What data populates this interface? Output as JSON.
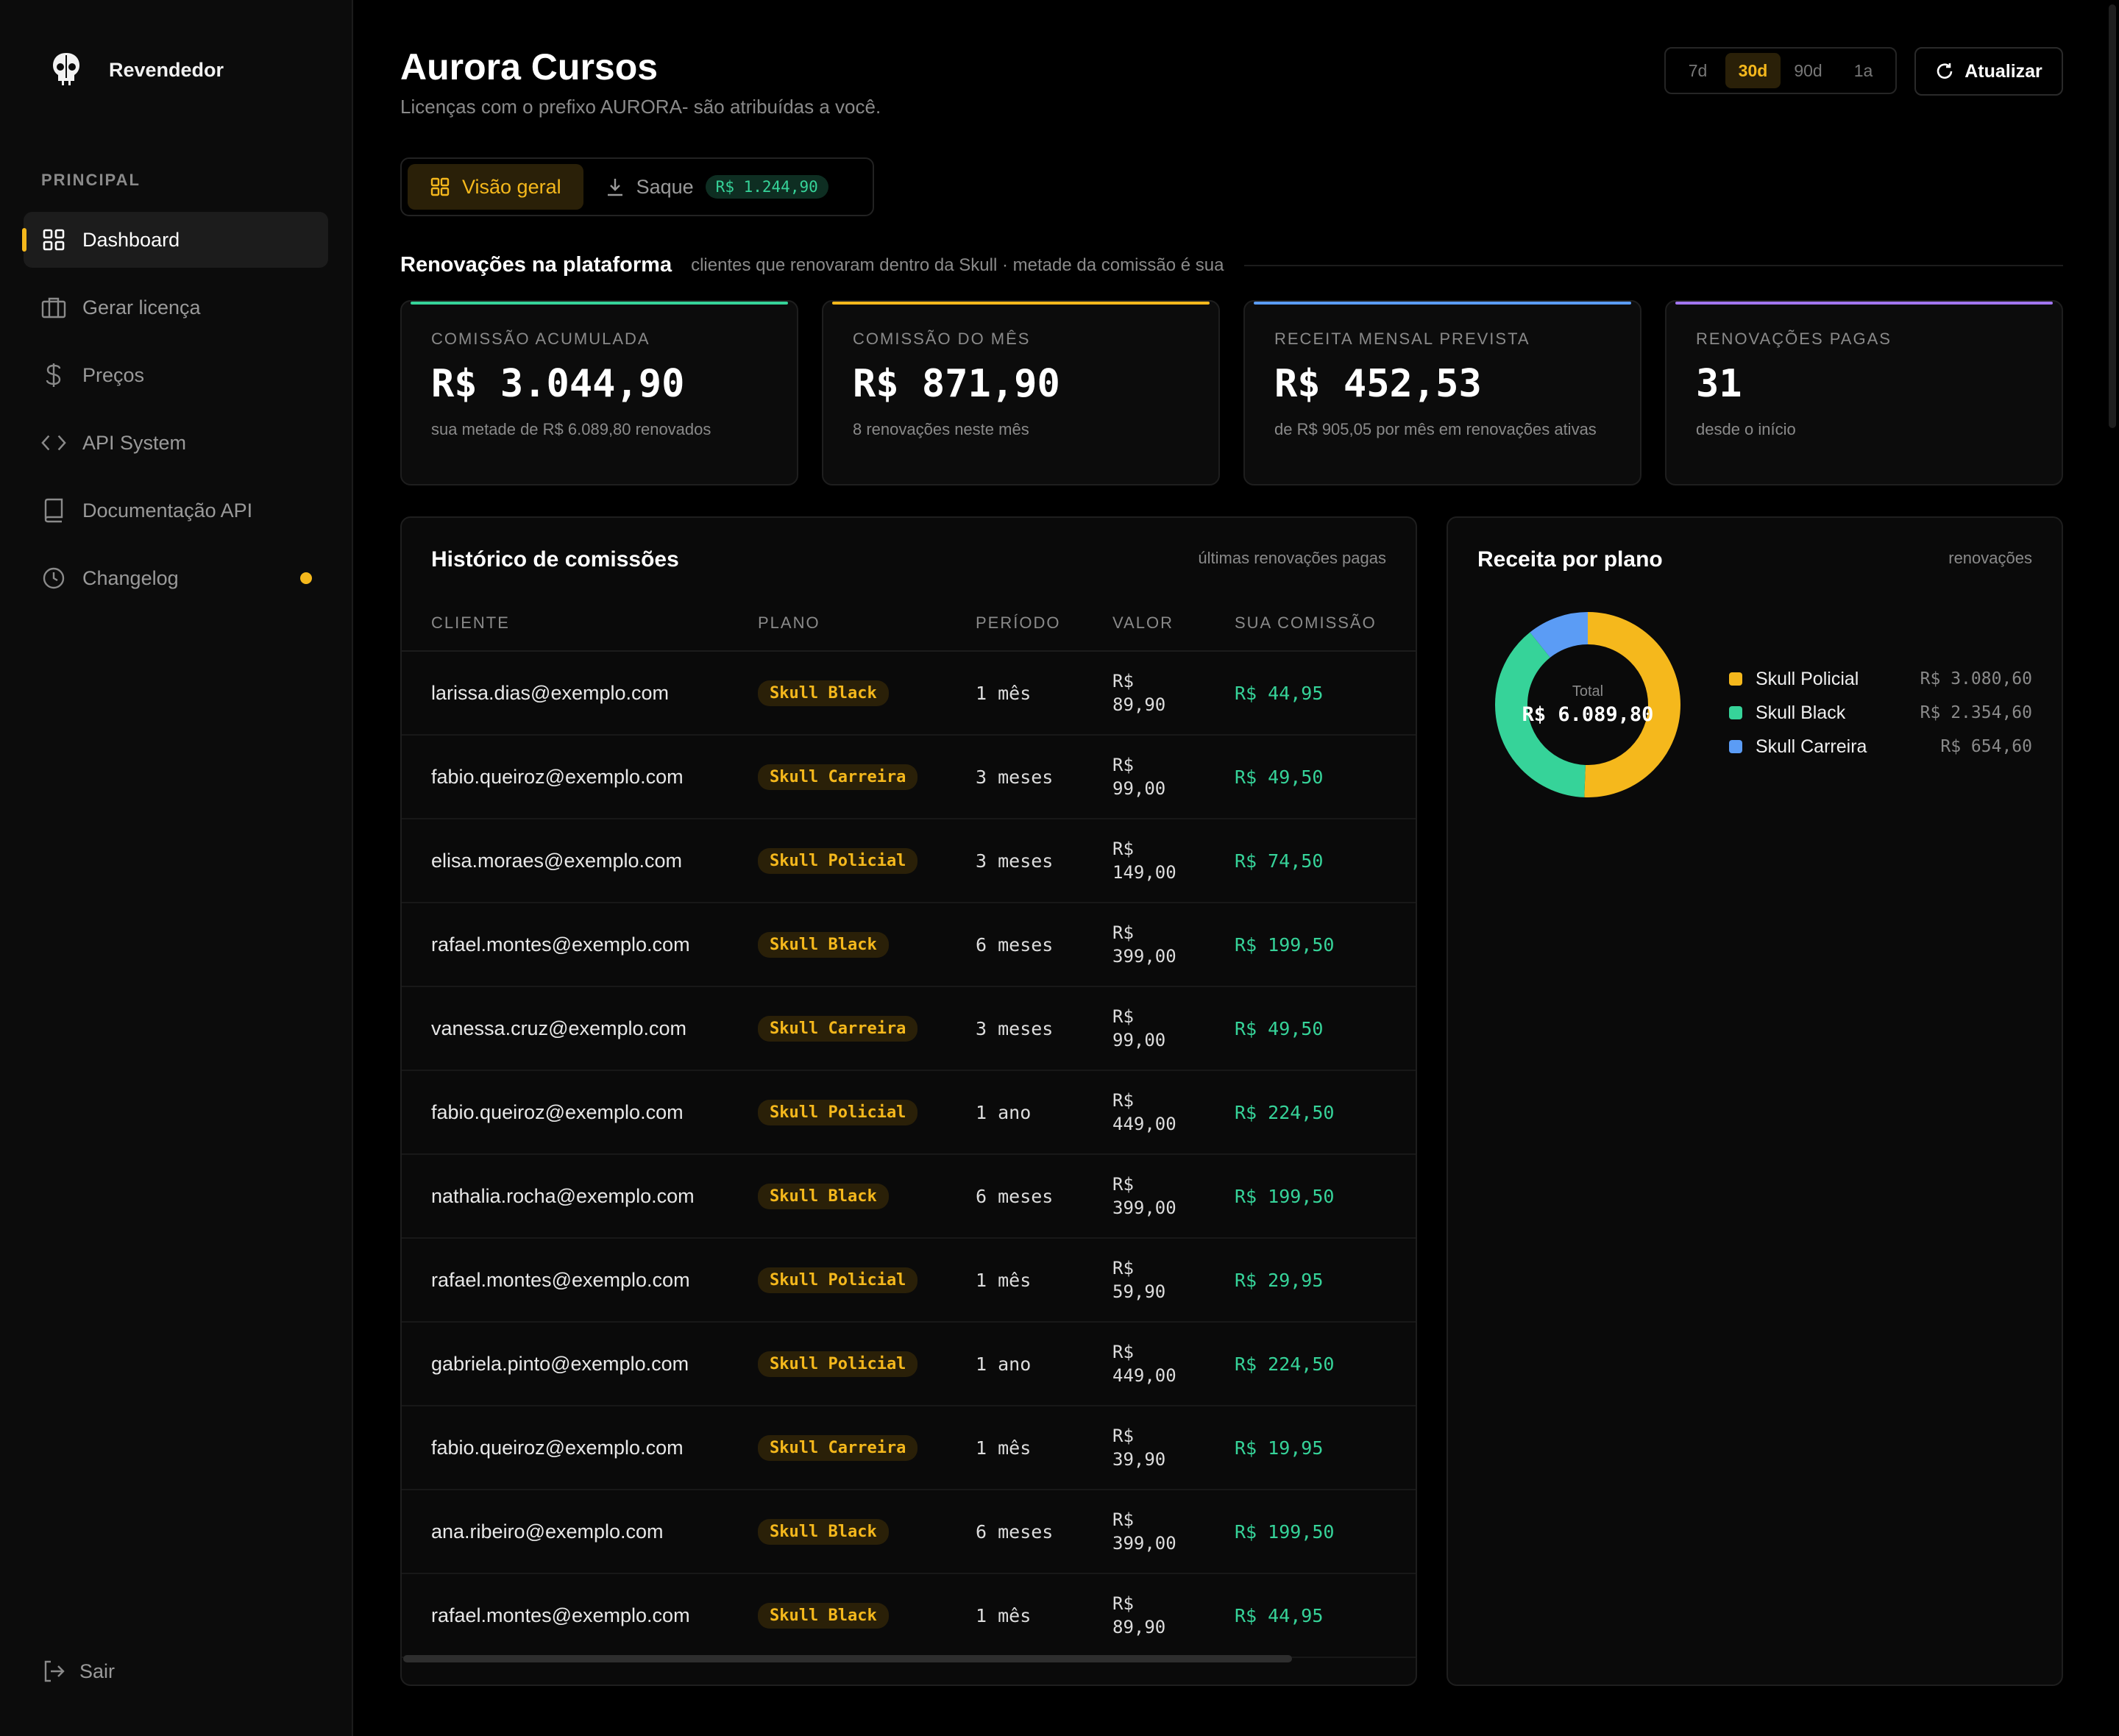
{
  "sidebar": {
    "brand": "Revendedor",
    "section": "PRINCIPAL",
    "items": [
      {
        "label": "Dashboard",
        "icon": "grid-icon"
      },
      {
        "label": "Gerar licença",
        "icon": "briefcase-icon"
      },
      {
        "label": "Preços",
        "icon": "dollar-icon"
      },
      {
        "label": "API System",
        "icon": "code-icon"
      },
      {
        "label": "Documentação API",
        "icon": "book-icon"
      },
      {
        "label": "Changelog",
        "icon": "clock-icon"
      }
    ],
    "logout": "Sair"
  },
  "header": {
    "title": "Aurora Cursos",
    "subtitle": "Licenças com o prefixo AURORA- são atribuídas a você.",
    "ranges": [
      "7d",
      "30d",
      "90d",
      "1a"
    ],
    "active_range": "30d",
    "refresh_label": "Atualizar"
  },
  "tabs": {
    "overview": "Visão geral",
    "withdraw": "Saque",
    "withdraw_badge": "R$ 1.244,90"
  },
  "section": {
    "title": "Renovações na plataforma",
    "desc": "clientes que renovaram dentro da Skull · metade da comissão é sua"
  },
  "kpis": [
    {
      "label": "COMISSÃO ACUMULADA",
      "value": "R$ 3.044,90",
      "sub": "sua metade de R$ 6.089,80 renovados",
      "color": "#36d399"
    },
    {
      "label": "COMISSÃO DO MÊS",
      "value": "R$ 871,90",
      "sub": "8 renovações neste mês",
      "color": "#f5b81c"
    },
    {
      "label": "RECEITA MENSAL PREVISTA",
      "value": "R$ 452,53",
      "sub": "de R$ 905,05 por mês em renovações ativas",
      "color": "#5b9cf5"
    },
    {
      "label": "RENOVAÇÕES PAGAS",
      "value": "31",
      "sub": "desde o início",
      "color": "#a276f0"
    }
  ],
  "history": {
    "title": "Histórico de comissões",
    "meta": "últimas renovações pagas",
    "columns": [
      "CLIENTE",
      "PLANO",
      "PERÍODO",
      "VALOR",
      "SUA COMISSÃO"
    ],
    "rows": [
      {
        "email": "larissa.dias@exemplo.com",
        "plan": "Skull Black",
        "period": "1 mês",
        "value_cur": "R$",
        "value_num": "89,90",
        "commission": "R$ 44,95"
      },
      {
        "email": "fabio.queiroz@exemplo.com",
        "plan": "Skull Carreira",
        "period": "3 meses",
        "value_cur": "R$",
        "value_num": "99,00",
        "commission": "R$ 49,50"
      },
      {
        "email": "elisa.moraes@exemplo.com",
        "plan": "Skull Policial",
        "period": "3 meses",
        "value_cur": "R$",
        "value_num": "149,00",
        "commission": "R$ 74,50"
      },
      {
        "email": "rafael.montes@exemplo.com",
        "plan": "Skull Black",
        "period": "6 meses",
        "value_cur": "R$",
        "value_num": "399,00",
        "commission": "R$ 199,50"
      },
      {
        "email": "vanessa.cruz@exemplo.com",
        "plan": "Skull Carreira",
        "period": "3 meses",
        "value_cur": "R$",
        "value_num": "99,00",
        "commission": "R$ 49,50"
      },
      {
        "email": "fabio.queiroz@exemplo.com",
        "plan": "Skull Policial",
        "period": "1 ano",
        "value_cur": "R$",
        "value_num": "449,00",
        "commission": "R$ 224,50"
      },
      {
        "email": "nathalia.rocha@exemplo.com",
        "plan": "Skull Black",
        "period": "6 meses",
        "value_cur": "R$",
        "value_num": "399,00",
        "commission": "R$ 199,50"
      },
      {
        "email": "rafael.montes@exemplo.com",
        "plan": "Skull Policial",
        "period": "1 mês",
        "value_cur": "R$",
        "value_num": "59,90",
        "commission": "R$ 29,95"
      },
      {
        "email": "gabriela.pinto@exemplo.com",
        "plan": "Skull Policial",
        "period": "1 ano",
        "value_cur": "R$",
        "value_num": "449,00",
        "commission": "R$ 224,50"
      },
      {
        "email": "fabio.queiroz@exemplo.com",
        "plan": "Skull Carreira",
        "period": "1 mês",
        "value_cur": "R$",
        "value_num": "39,90",
        "commission": "R$ 19,95"
      },
      {
        "email": "ana.ribeiro@exemplo.com",
        "plan": "Skull Black",
        "period": "6 meses",
        "value_cur": "R$",
        "value_num": "399,00",
        "commission": "R$ 199,50"
      },
      {
        "email": "rafael.montes@exemplo.com",
        "plan": "Skull Black",
        "period": "1 mês",
        "value_cur": "R$",
        "value_num": "89,90",
        "commission": "R$ 44,95"
      }
    ]
  },
  "revenue": {
    "title": "Receita por plano",
    "meta": "renovações",
    "total_label": "Total",
    "total_value": "R$ 6.089,80"
  },
  "chart_data": {
    "type": "pie",
    "title": "Receita por plano",
    "categories": [
      "Skull Policial",
      "Skull Black",
      "Skull Carreira"
    ],
    "values": [
      3080.6,
      2354.6,
      654.6
    ],
    "value_labels": [
      "R$ 3.080,60",
      "R$ 2.354,60",
      "R$ 654,60"
    ],
    "colors": [
      "#f5b81c",
      "#36d399",
      "#5b9cf5"
    ],
    "legend": "right"
  }
}
